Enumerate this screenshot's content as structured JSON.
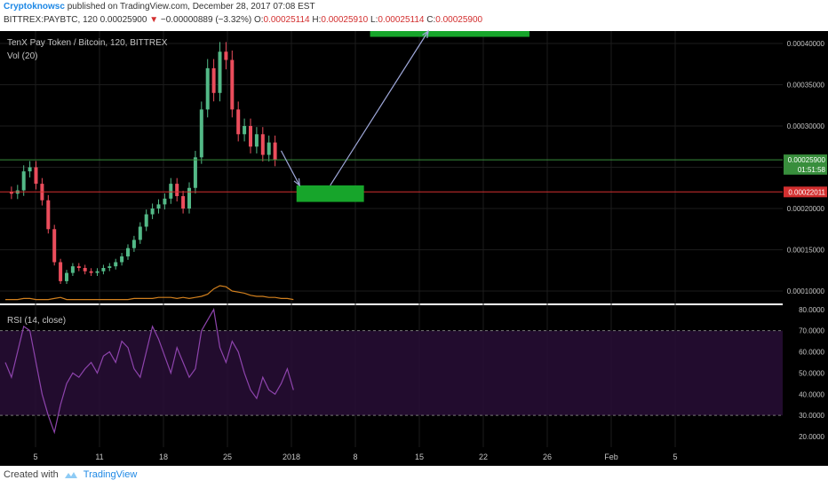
{
  "header": {
    "author": "Cryptoknowsc",
    "published_text": "published on TradingView.com, December 28, 2017 07:08 EST",
    "symbol_line": "BITTREX:PAYBTC, 120",
    "last_price": "0.00025900",
    "change_arrow": "▼",
    "change": "−0.00000889 (−3.32%)",
    "ohlc_o_label": "O:",
    "ohlc_o": "0.00025114",
    "ohlc_h_label": "H:",
    "ohlc_h": "0.00025910",
    "ohlc_l_label": "L:",
    "ohlc_l": "0.00025114",
    "ohlc_c_label": "C:",
    "ohlc_c": "0.00025900"
  },
  "footer": {
    "created_with": "Created with",
    "brand": "TradingView"
  },
  "colors": {
    "background": "#000000",
    "up": "#53b987",
    "down": "#eb4d5c",
    "rsi": "#8e44ad",
    "hline_red": "#d32f2f",
    "hline_green": "#388e3c",
    "target_box": "#17a52b",
    "arrow": "#9fa8da",
    "volume": "#d2801e"
  },
  "chart_data": {
    "type": "candlestick",
    "title": "TenX Pay Token / Bitcoin, 120, BITTREX",
    "volume_label": "Vol (20)",
    "price_axis": {
      "ticks": [
        "0.00040000",
        "0.00035000",
        "0.00030000",
        "0.00025000",
        "0.00020000",
        "0.00015000",
        "0.00010000"
      ],
      "range": [
        8.5e-05,
        0.000415
      ]
    },
    "price_badges": [
      {
        "label": "0.00025900",
        "value": 0.000259,
        "color": "#388e3c"
      },
      {
        "label": "01:51:58",
        "value": 0.0002475,
        "color": "#388e3c"
      },
      {
        "label": "0.00022011",
        "value": 0.00022011,
        "color": "#d32f2f"
      }
    ],
    "time_axis": {
      "labels": [
        "5",
        "11",
        "18",
        "25",
        "2018",
        "8",
        "15",
        "22",
        "26",
        "Feb",
        "5"
      ]
    },
    "price_path": [
      [
        0,
        0.00022
      ],
      [
        2,
        0.000218
      ],
      [
        4,
        0.000222
      ],
      [
        6,
        0.000245
      ],
      [
        7,
        0.00025
      ],
      [
        8,
        0.00023
      ],
      [
        9,
        0.00021
      ],
      [
        10,
        0.000175
      ],
      [
        11,
        0.000135
      ],
      [
        12,
        0.000112
      ],
      [
        13,
        0.000122
      ],
      [
        14,
        0.00013
      ],
      [
        15,
        0.000128
      ],
      [
        16,
        0.000124
      ],
      [
        17,
        0.000122
      ],
      [
        18,
        0.000124
      ],
      [
        19,
        0.000128
      ],
      [
        20,
        0.00013
      ],
      [
        21,
        0.000135
      ],
      [
        22,
        0.000142
      ],
      [
        23,
        0.000152
      ],
      [
        24,
        0.000162
      ],
      [
        25,
        0.000178
      ],
      [
        26,
        0.000193
      ],
      [
        27,
        0.0002
      ],
      [
        28,
        0.000205
      ],
      [
        29,
        0.000212
      ],
      [
        30,
        0.00023
      ],
      [
        31,
        0.000215
      ],
      [
        32,
        0.0002
      ],
      [
        33,
        0.000225
      ],
      [
        34,
        0.000262
      ],
      [
        35,
        0.00032
      ],
      [
        36,
        0.00037
      ],
      [
        37,
        0.00034
      ],
      [
        38,
        0.00039
      ],
      [
        39,
        0.00038
      ],
      [
        40,
        0.00032
      ],
      [
        41,
        0.00029
      ],
      [
        42,
        0.0003
      ],
      [
        43,
        0.000275
      ],
      [
        44,
        0.00029
      ],
      [
        45,
        0.000265
      ],
      [
        46,
        0.00028
      ],
      [
        47,
        0.000259
      ]
    ],
    "volume": [
      2,
      2,
      2,
      3,
      3,
      2,
      2,
      2,
      3,
      4,
      2,
      2,
      2,
      2,
      2,
      2,
      2,
      2,
      2,
      2,
      2,
      3,
      3,
      3,
      3,
      4,
      4,
      4,
      3,
      4,
      3,
      4,
      5,
      7,
      12,
      15,
      14,
      10,
      9,
      8,
      6,
      5,
      5,
      4,
      4,
      3,
      3,
      2
    ],
    "rsi": {
      "label": "RSI (14, close)",
      "ticks": [
        "80.0000",
        "70.0000",
        "60.0000",
        "50.0000",
        "40.0000",
        "30.0000",
        "20.0000"
      ],
      "range": [
        15,
        82
      ],
      "upper": 70,
      "lower": 30,
      "values": [
        55,
        48,
        60,
        72,
        70,
        55,
        40,
        30,
        22,
        35,
        45,
        50,
        48,
        52,
        55,
        50,
        58,
        60,
        55,
        65,
        62,
        52,
        48,
        60,
        72,
        66,
        58,
        50,
        62,
        55,
        48,
        52,
        70,
        75,
        80,
        62,
        55,
        65,
        60,
        50,
        42,
        38,
        48,
        42,
        40,
        45,
        52,
        42
      ]
    },
    "target_zones": [
      {
        "from_x": 47.5,
        "to_x": 58.5,
        "low": 0.000208,
        "high": 0.000228
      },
      {
        "from_x": 59.5,
        "to_x": 85.5,
        "low": 0.000408,
        "high": 0.000418
      }
    ],
    "arrows": [
      {
        "from": [
          45,
          0.00027
        ],
        "to": [
          48,
          0.000228
        ]
      },
      {
        "from": [
          53,
          0.000228
        ],
        "to": [
          69,
          0.000418
        ]
      }
    ]
  }
}
